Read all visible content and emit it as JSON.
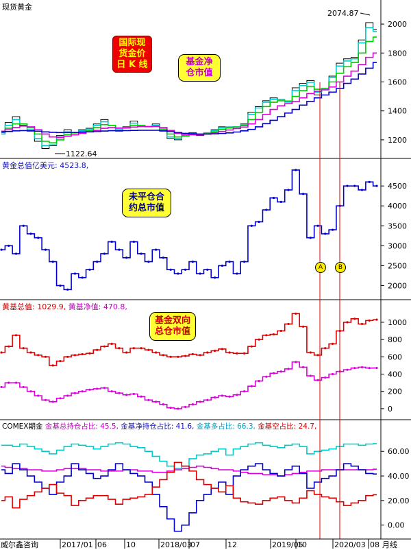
{
  "chart_data": [
    {
      "type": "line",
      "title": "现货黄金",
      "price_high_label": "2074.87",
      "price_low_label": "1122.64",
      "y_ticks": [
        1200,
        1400,
        1600,
        1800,
        2000
      ],
      "ylim": [
        1100,
        2100
      ],
      "series": [
        {
          "name": "price",
          "color": "#000000",
          "values": [
            1240,
            1320,
            1360,
            1300,
            1260,
            1190,
            1140,
            1160,
            1230,
            1270,
            1250,
            1270,
            1280,
            1310,
            1340,
            1300,
            1260,
            1290,
            1330,
            1300,
            1290,
            1310,
            1260,
            1210,
            1200,
            1230,
            1250,
            1230,
            1250,
            1270,
            1290,
            1290,
            1290,
            1310,
            1390,
            1430,
            1470,
            1490,
            1480,
            1460,
            1560,
            1590,
            1610,
            1510,
            1550,
            1640,
            1730,
            1760,
            1770,
            1890,
            2010,
            1960
          ]
        },
        {
          "name": "ma_short",
          "color": "#00cccc",
          "values": [
            1240,
            1300,
            1340,
            1310,
            1270,
            1210,
            1160,
            1165,
            1220,
            1255,
            1250,
            1262,
            1275,
            1300,
            1325,
            1300,
            1270,
            1285,
            1315,
            1300,
            1290,
            1300,
            1265,
            1220,
            1210,
            1228,
            1245,
            1235,
            1248,
            1265,
            1282,
            1288,
            1290,
            1305,
            1375,
            1420,
            1460,
            1480,
            1478,
            1462,
            1540,
            1575,
            1598,
            1530,
            1550,
            1630,
            1710,
            1745,
            1760,
            1870,
            1975,
            1950
          ]
        },
        {
          "name": "ma_mid",
          "color": "#00cc00",
          "values": [
            1250,
            1280,
            1310,
            1310,
            1285,
            1240,
            1190,
            1180,
            1200,
            1235,
            1248,
            1255,
            1265,
            1285,
            1305,
            1300,
            1280,
            1282,
            1300,
            1300,
            1292,
            1295,
            1275,
            1240,
            1220,
            1225,
            1238,
            1236,
            1244,
            1256,
            1272,
            1282,
            1288,
            1298,
            1340,
            1390,
            1430,
            1460,
            1470,
            1468,
            1500,
            1540,
            1570,
            1550,
            1555,
            1600,
            1660,
            1705,
            1735,
            1800,
            1880,
            1910
          ]
        },
        {
          "name": "ma_long",
          "color": "#dd00dd",
          "values": [
            1260,
            1270,
            1285,
            1295,
            1290,
            1270,
            1240,
            1220,
            1215,
            1225,
            1235,
            1245,
            1255,
            1265,
            1280,
            1285,
            1282,
            1282,
            1288,
            1292,
            1292,
            1292,
            1285,
            1265,
            1245,
            1235,
            1235,
            1236,
            1240,
            1248,
            1258,
            1268,
            1278,
            1288,
            1310,
            1340,
            1375,
            1410,
            1435,
            1450,
            1465,
            1490,
            1520,
            1535,
            1545,
            1565,
            1600,
            1640,
            1675,
            1720,
            1770,
            1800
          ]
        },
        {
          "name": "ma_very_long",
          "color": "#0000cc",
          "values": [
            1255,
            1258,
            1262,
            1264,
            1263,
            1260,
            1255,
            1252,
            1250,
            1250,
            1251,
            1253,
            1256,
            1258,
            1261,
            1263,
            1263,
            1264,
            1265,
            1266,
            1266,
            1266,
            1264,
            1258,
            1250,
            1245,
            1242,
            1240,
            1240,
            1241,
            1244,
            1248,
            1254,
            1262,
            1272,
            1290,
            1312,
            1335,
            1360,
            1385,
            1410,
            1440,
            1465,
            1490,
            1510,
            1530,
            1555,
            1590,
            1620,
            1655,
            1695,
            1735
          ]
        }
      ]
    },
    {
      "type": "line",
      "title": "黄金总值亿美元:",
      "title_value": "4523.8,",
      "y_ticks": [
        2000,
        2500,
        3000,
        3500,
        4000,
        4500
      ],
      "ylim": [
        1750,
        4950
      ],
      "series": [
        {
          "name": "黄金总值亿美元",
          "color": "#0000cc",
          "values": [
            2900,
            3000,
            2800,
            3500,
            3300,
            3200,
            2900,
            2600,
            2000,
            1900,
            2300,
            2200,
            2400,
            2600,
            2800,
            3100,
            2900,
            2700,
            3100,
            2800,
            2600,
            2900,
            2700,
            2400,
            2300,
            2400,
            2600,
            2300,
            2400,
            2200,
            2500,
            2600,
            2300,
            2600,
            3500,
            3600,
            3900,
            4200,
            4100,
            4400,
            4900,
            4300,
            3200,
            3500,
            3300,
            3400,
            4000,
            4500,
            4500,
            4400,
            4600,
            4500
          ]
        }
      ]
    },
    {
      "type": "line",
      "title": "",
      "y_ticks": [
        0,
        200,
        400,
        600,
        800,
        1000
      ],
      "ylim": [
        -80,
        1150
      ],
      "series": [
        {
          "name": "黄基总值",
          "title_value": "1029.9,",
          "color": "#dd0000",
          "values": [
            650,
            720,
            850,
            700,
            650,
            620,
            600,
            500,
            550,
            600,
            620,
            630,
            640,
            680,
            720,
            750,
            700,
            650,
            700,
            700,
            680,
            650,
            620,
            600,
            600,
            610,
            630,
            620,
            650,
            670,
            690,
            650,
            640,
            640,
            720,
            800,
            850,
            860,
            900,
            980,
            1100,
            950,
            650,
            620,
            700,
            750,
            900,
            1000,
            1040,
            980,
            1020,
            1030
          ]
        },
        {
          "name": "黄基净值",
          "title_value": "470.8,",
          "color": "#dd00dd",
          "values": [
            250,
            300,
            300,
            250,
            200,
            150,
            100,
            80,
            120,
            150,
            180,
            200,
            220,
            230,
            240,
            200,
            180,
            160,
            170,
            140,
            100,
            80,
            50,
            10,
            0,
            20,
            50,
            80,
            100,
            130,
            150,
            140,
            160,
            200,
            260,
            320,
            370,
            410,
            430,
            460,
            540,
            480,
            380,
            330,
            360,
            400,
            430,
            450,
            470,
            480,
            470,
            471
          ]
        }
      ]
    },
    {
      "type": "line",
      "title": "COMEX期金",
      "y_ticks": [
        0.0,
        20.0,
        40.0,
        60.0
      ],
      "ylim": [
        -8,
        78
      ],
      "series": [
        {
          "name": "金基总持仓占比:",
          "title_value": "45.5,",
          "color": "#dd00dd",
          "values": [
            48,
            47,
            46,
            46,
            45,
            45,
            44,
            44,
            45,
            46,
            46,
            46,
            45,
            45,
            44,
            44,
            44,
            45,
            45,
            44,
            44,
            43,
            43,
            44,
            45,
            46,
            47,
            48,
            47,
            46,
            45,
            45,
            44,
            43,
            42,
            42,
            41,
            41,
            40,
            41,
            42,
            43,
            44,
            44,
            45,
            45,
            45,
            45,
            45,
            45,
            45,
            45.5
          ]
        },
        {
          "name": "金基净持仓占比:",
          "title_value": "41.6,",
          "color": "#0000cc",
          "values": [
            45,
            42,
            50,
            45,
            40,
            35,
            30,
            25,
            35,
            40,
            50,
            45,
            42,
            38,
            40,
            45,
            50,
            45,
            42,
            40,
            35,
            25,
            15,
            5,
            -5,
            0,
            10,
            20,
            25,
            30,
            35,
            25,
            40,
            45,
            48,
            50,
            45,
            42,
            40,
            45,
            48,
            42,
            30,
            35,
            38,
            40,
            45,
            50,
            48,
            45,
            42,
            41.6
          ]
        },
        {
          "name": "金基多占比:",
          "title_value": "66.3,",
          "color": "#00cccc",
          "values": [
            65,
            65,
            64,
            66,
            64,
            62,
            60,
            58,
            61,
            64,
            66,
            65,
            64,
            62,
            64,
            66,
            67,
            66,
            64,
            63,
            60,
            56,
            52,
            48,
            46,
            48,
            54,
            57,
            58,
            60,
            62,
            57,
            62,
            64,
            66,
            67,
            65,
            64,
            63,
            65,
            66,
            64,
            58,
            60,
            61,
            62,
            64,
            66,
            66,
            65,
            66,
            66.3
          ]
        },
        {
          "name": "金基空占比:",
          "title_value": "24.7,",
          "color": "#dd0000",
          "values": [
            20,
            23,
            14,
            21,
            24,
            27,
            30,
            33,
            26,
            24,
            16,
            20,
            22,
            24,
            24,
            21,
            17,
            21,
            22,
            23,
            25,
            31,
            37,
            43,
            51,
            48,
            44,
            37,
            33,
            30,
            27,
            32,
            22,
            19,
            18,
            17,
            20,
            22,
            23,
            20,
            18,
            22,
            28,
            25,
            23,
            22,
            19,
            16,
            18,
            20,
            24,
            24.7
          ]
        }
      ]
    }
  ],
  "x_ticks": [
    "2017/01",
    "06",
    "10",
    "2018/03",
    "07",
    "12",
    "2019/05",
    "10",
    "2020/03",
    "08"
  ],
  "footer": {
    "brand": "威尔鑫咨询",
    "period": "月线"
  },
  "callouts": {
    "gold_kline": "国际现\n货金价\n日 K 线",
    "fund_net_value": "基金净\n仓市值",
    "open_interest_value": "未平仓合\n约总市值",
    "fund_dual_value": "基金双向\n总仓市值"
  },
  "markers": {
    "a": "A",
    "b": "B"
  },
  "colors": {
    "price": "#000000",
    "blue": "#0000cc",
    "red": "#dd0000",
    "magenta": "#dd00dd",
    "cyan": "#00cccc",
    "green": "#00cc00"
  }
}
